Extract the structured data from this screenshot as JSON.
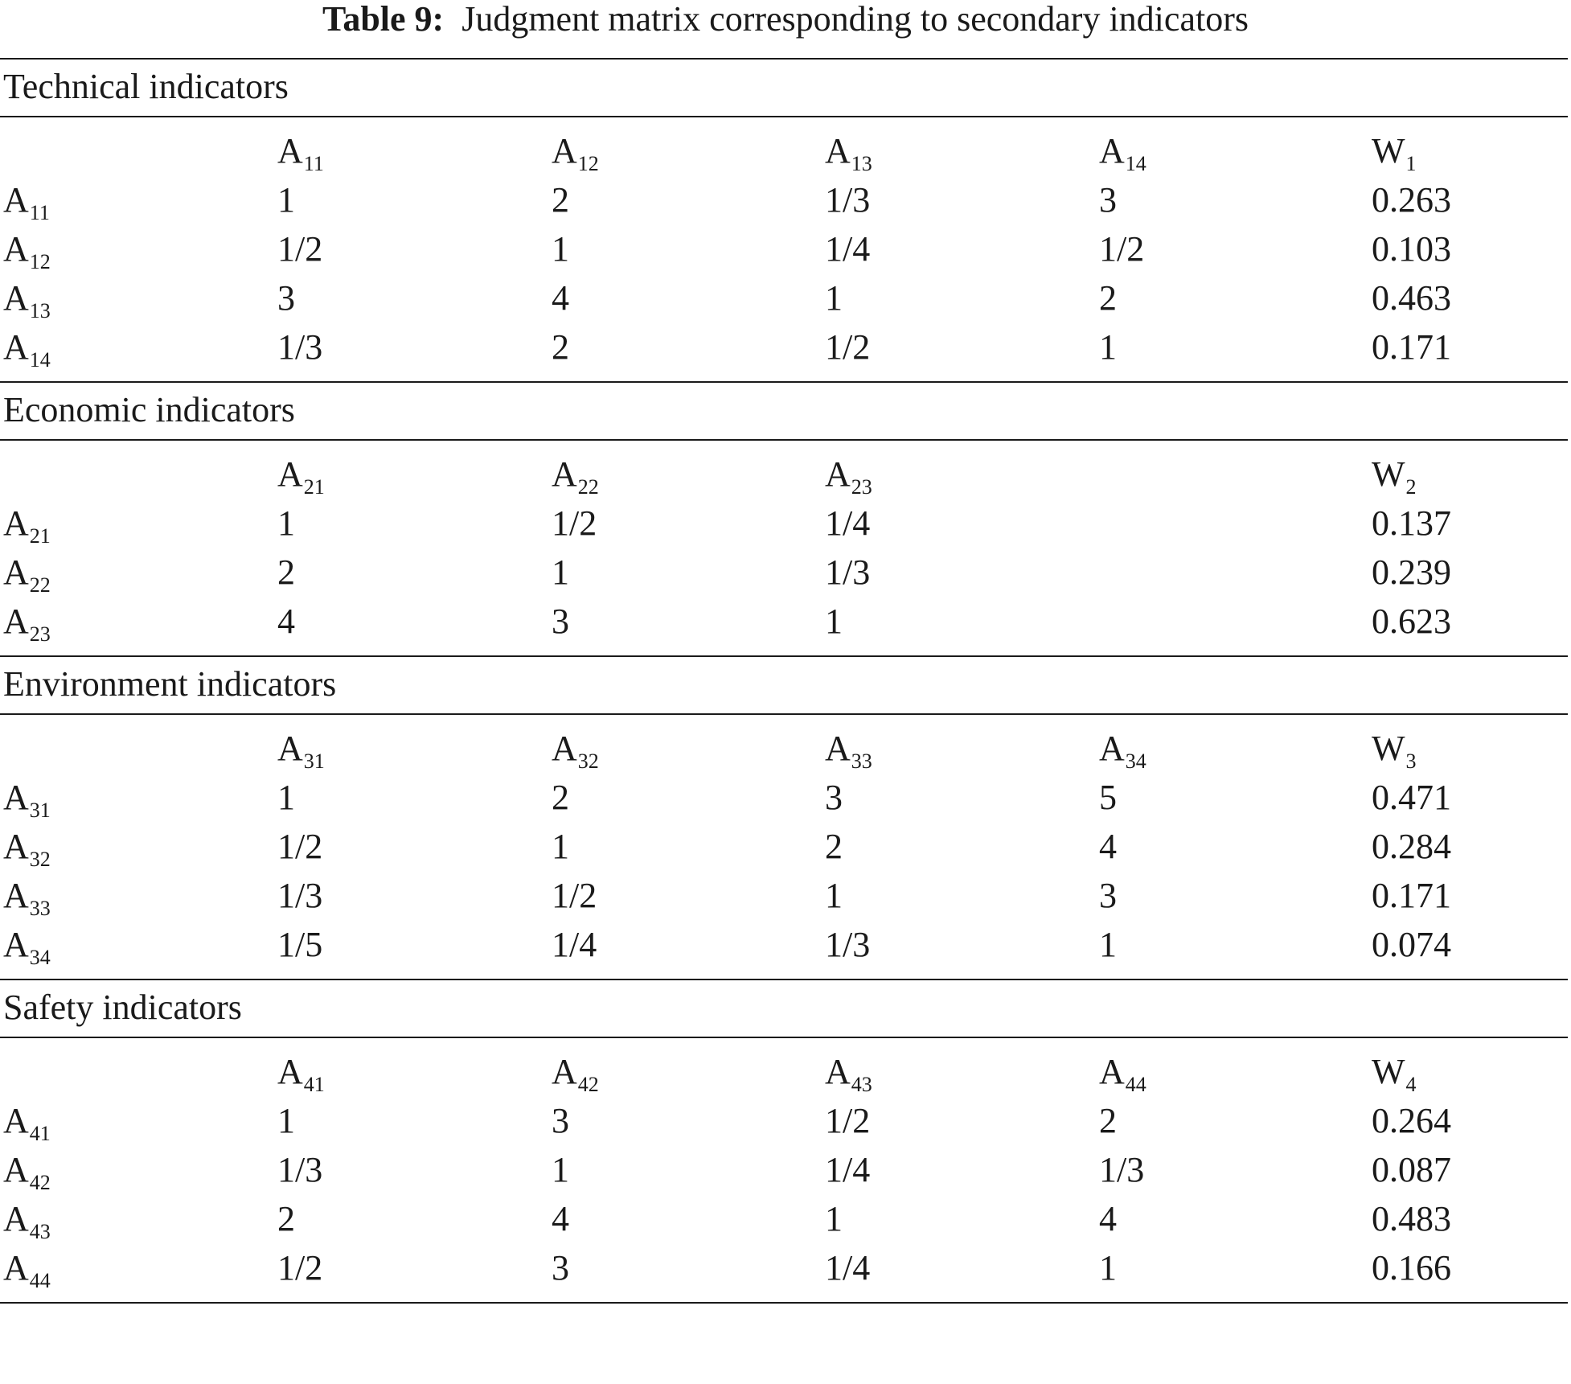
{
  "caption": {
    "label": "Table 9:",
    "text": "Judgment matrix corresponding to secondary indicators"
  },
  "sections": [
    {
      "title": "Technical indicators",
      "header": [
        {
          "main": "A",
          "sub": "11"
        },
        {
          "main": "A",
          "sub": "12"
        },
        {
          "main": "A",
          "sub": "13"
        },
        {
          "main": "A",
          "sub": "14"
        },
        {
          "main": "W",
          "sub": "1"
        }
      ],
      "rows": [
        {
          "label": {
            "main": "A",
            "sub": "11"
          },
          "values": [
            "1",
            "2",
            "1/3",
            "3",
            "0.263"
          ]
        },
        {
          "label": {
            "main": "A",
            "sub": "12"
          },
          "values": [
            "1/2",
            "1",
            "1/4",
            "1/2",
            "0.103"
          ]
        },
        {
          "label": {
            "main": "A",
            "sub": "13"
          },
          "values": [
            "3",
            "4",
            "1",
            "2",
            "0.463"
          ]
        },
        {
          "label": {
            "main": "A",
            "sub": "14"
          },
          "values": [
            "1/3",
            "2",
            "1/2",
            "1",
            "0.171"
          ]
        }
      ]
    },
    {
      "title": "Economic indicators",
      "header": [
        {
          "main": "A",
          "sub": "21"
        },
        {
          "main": "A",
          "sub": "22"
        },
        {
          "main": "A",
          "sub": "23"
        },
        {
          "main": "",
          "sub": ""
        },
        {
          "main": "W",
          "sub": "2"
        }
      ],
      "rows": [
        {
          "label": {
            "main": "A",
            "sub": "21"
          },
          "values": [
            "1",
            "1/2",
            "1/4",
            "",
            "0.137"
          ]
        },
        {
          "label": {
            "main": "A",
            "sub": "22"
          },
          "values": [
            "2",
            "1",
            "1/3",
            "",
            "0.239"
          ]
        },
        {
          "label": {
            "main": "A",
            "sub": "23"
          },
          "values": [
            "4",
            "3",
            "1",
            "",
            "0.623"
          ]
        }
      ]
    },
    {
      "title": "Environment indicators",
      "header": [
        {
          "main": "A",
          "sub": "31"
        },
        {
          "main": "A",
          "sub": "32"
        },
        {
          "main": "A",
          "sub": "33"
        },
        {
          "main": "A",
          "sub": "34"
        },
        {
          "main": "W",
          "sub": "3"
        }
      ],
      "rows": [
        {
          "label": {
            "main": "A",
            "sub": "31"
          },
          "values": [
            "1",
            "2",
            "3",
            "5",
            "0.471"
          ]
        },
        {
          "label": {
            "main": "A",
            "sub": "32"
          },
          "values": [
            "1/2",
            "1",
            "2",
            "4",
            "0.284"
          ]
        },
        {
          "label": {
            "main": "A",
            "sub": "33"
          },
          "values": [
            "1/3",
            "1/2",
            "1",
            "3",
            "0.171"
          ]
        },
        {
          "label": {
            "main": "A",
            "sub": "34"
          },
          "values": [
            "1/5",
            "1/4",
            "1/3",
            "1",
            "0.074"
          ]
        }
      ]
    },
    {
      "title": "Safety indicators",
      "header": [
        {
          "main": "A",
          "sub": "41"
        },
        {
          "main": "A",
          "sub": "42"
        },
        {
          "main": "A",
          "sub": "43"
        },
        {
          "main": "A",
          "sub": "44"
        },
        {
          "main": "W",
          "sub": "4"
        }
      ],
      "rows": [
        {
          "label": {
            "main": "A",
            "sub": "41"
          },
          "values": [
            "1",
            "3",
            "1/2",
            "2",
            "0.264"
          ]
        },
        {
          "label": {
            "main": "A",
            "sub": "42"
          },
          "values": [
            "1/3",
            "1",
            "1/4",
            "1/3",
            "0.087"
          ]
        },
        {
          "label": {
            "main": "A",
            "sub": "43"
          },
          "values": [
            "2",
            "4",
            "1",
            "4",
            "0.483"
          ]
        },
        {
          "label": {
            "main": "A",
            "sub": "44"
          },
          "values": [
            "1/2",
            "3",
            "1/4",
            "1",
            "0.166"
          ]
        }
      ]
    }
  ]
}
